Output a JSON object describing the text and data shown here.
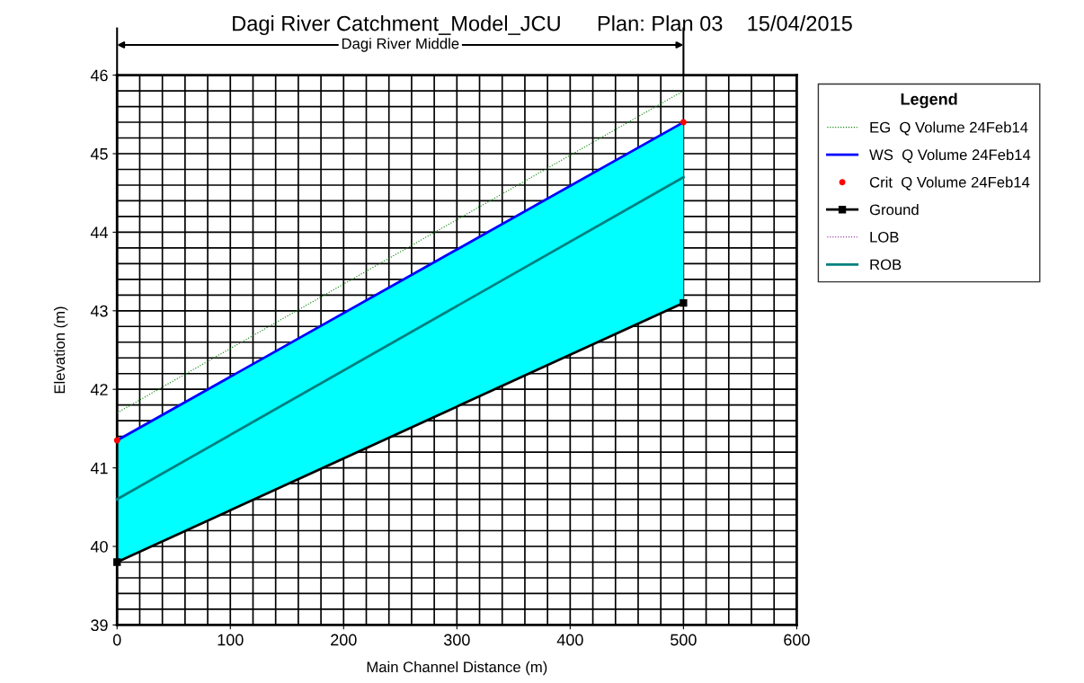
{
  "chart_data": {
    "type": "line",
    "title": "Dagi River Catchment_Model_JCU      Plan: Plan 03    15/04/2015",
    "xlabel": "Main Channel Distance (m)",
    "ylabel": "Elevation (m)",
    "legend_title": "Legend",
    "annotations": [
      "Dagi River Middle"
    ],
    "x": [
      0,
      500
    ],
    "series": [
      {
        "name": "EG  Q Volume 24Feb14",
        "color": "#008000",
        "values": [
          41.7,
          45.8
        ],
        "line_style": "dotted"
      },
      {
        "name": "WS  Q Volume 24Feb14",
        "color": "#0000ff",
        "values": [
          41.35,
          45.4
        ],
        "lower": [
          39.8,
          43.1
        ],
        "upper": [
          41.35,
          45.4
        ]
      },
      {
        "name": "Crit  Q Volume 24Feb14",
        "type": "scatter",
        "color": "#ff0000",
        "values": [
          41.35,
          45.4
        ]
      },
      {
        "name": "Ground",
        "color": "#000000",
        "values": [
          39.8,
          43.1
        ],
        "marker": "square"
      },
      {
        "name": "LOB",
        "color": "#800080",
        "values": [
          null,
          null
        ],
        "line_style": "dotted"
      },
      {
        "name": "ROB",
        "color": "#008080",
        "values": [
          40.6,
          44.7
        ],
        "line_style": "solid"
      }
    ],
    "xlim": [
      0,
      600
    ],
    "xticks": [
      0,
      100,
      200,
      300,
      400,
      500,
      600
    ],
    "ylim": [
      39,
      46
    ],
    "yticks": [
      39,
      40,
      41,
      42,
      43,
      44,
      45,
      46
    ],
    "grid": true,
    "legend": "right"
  }
}
